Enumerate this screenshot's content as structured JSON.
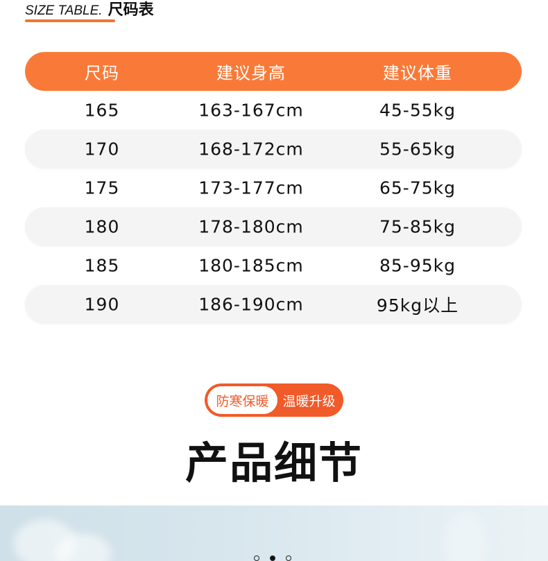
{
  "section": {
    "title_en": "SIZE TABLE.",
    "title_cn": "尺码表"
  },
  "table": {
    "headers": [
      "尺码",
      "建议身高",
      "建议体重"
    ],
    "rows": [
      [
        "165",
        "163-167cm",
        "45-55kg"
      ],
      [
        "170",
        "168-172cm",
        "55-65kg"
      ],
      [
        "175",
        "173-177cm",
        "65-75kg"
      ],
      [
        "180",
        "178-180cm",
        "75-85kg"
      ],
      [
        "185",
        "180-185cm",
        "85-95kg"
      ],
      [
        "190",
        "186-190cm",
        "95kg以上"
      ]
    ]
  },
  "badge": {
    "left": "防寒保暖",
    "right": "温暖升级"
  },
  "details_title": "产品细节",
  "carousel": {
    "count": 3,
    "active": 2
  },
  "colors": {
    "accent": "#f97a38",
    "badge": "#f15a29"
  }
}
